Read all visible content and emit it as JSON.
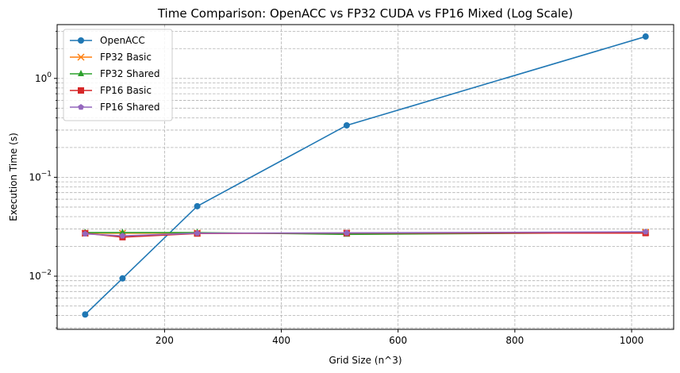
{
  "chart_data": {
    "type": "line",
    "title": "Time Comparison: OpenACC vs FP32 CUDA vs FP16 Mixed (Log Scale)",
    "xlabel": "Grid Size (n^3)",
    "ylabel": "Execution Time (s)",
    "xlim": [
      16,
      1072
    ],
    "ylim": [
      0.0029,
      3.5
    ],
    "yscale": "log",
    "grid": true,
    "legend_position": "top-left",
    "x_ticks": [
      {
        "value": 200,
        "label": "200"
      },
      {
        "value": 400,
        "label": "400"
      },
      {
        "value": 600,
        "label": "600"
      },
      {
        "value": 800,
        "label": "800"
      },
      {
        "value": 1000,
        "label": "1000"
      }
    ],
    "y_major_ticks": [
      {
        "value": 0.01,
        "base": "10",
        "exp": "−2"
      },
      {
        "value": 0.1,
        "base": "10",
        "exp": "−1"
      },
      {
        "value": 1,
        "base": "10",
        "exp": "0"
      }
    ],
    "y_minor_ticks": [
      0.003,
      0.004,
      0.005,
      0.006,
      0.007,
      0.008,
      0.009,
      0.02,
      0.03,
      0.04,
      0.05,
      0.06,
      0.07,
      0.08,
      0.09,
      0.2,
      0.3,
      0.4,
      0.5,
      0.6,
      0.7,
      0.8,
      0.9,
      2,
      3
    ],
    "x": [
      64,
      128,
      256,
      512,
      1024
    ],
    "series": [
      {
        "name": "OpenACC",
        "color": "#1f77b4",
        "marker": "circle",
        "values": [
          0.0041,
          0.0095,
          0.051,
          0.335,
          2.65
        ]
      },
      {
        "name": "FP32 Basic",
        "color": "#ff7f0e",
        "marker": "x",
        "values": [
          0.0272,
          0.0272,
          0.0273,
          0.0272,
          0.0278
        ]
      },
      {
        "name": "FP32 Shared",
        "color": "#2ca02c",
        "marker": "triangle",
        "values": [
          0.0276,
          0.0276,
          0.0276,
          0.0265,
          0.0276
        ]
      },
      {
        "name": "FP16 Basic",
        "color": "#d62728",
        "marker": "square",
        "values": [
          0.0272,
          0.0248,
          0.027,
          0.0273,
          0.0273
        ]
      },
      {
        "name": "FP16 Shared",
        "color": "#9467bd",
        "marker": "pentagon",
        "values": [
          0.0268,
          0.0256,
          0.0272,
          0.0274,
          0.0281
        ]
      }
    ]
  }
}
